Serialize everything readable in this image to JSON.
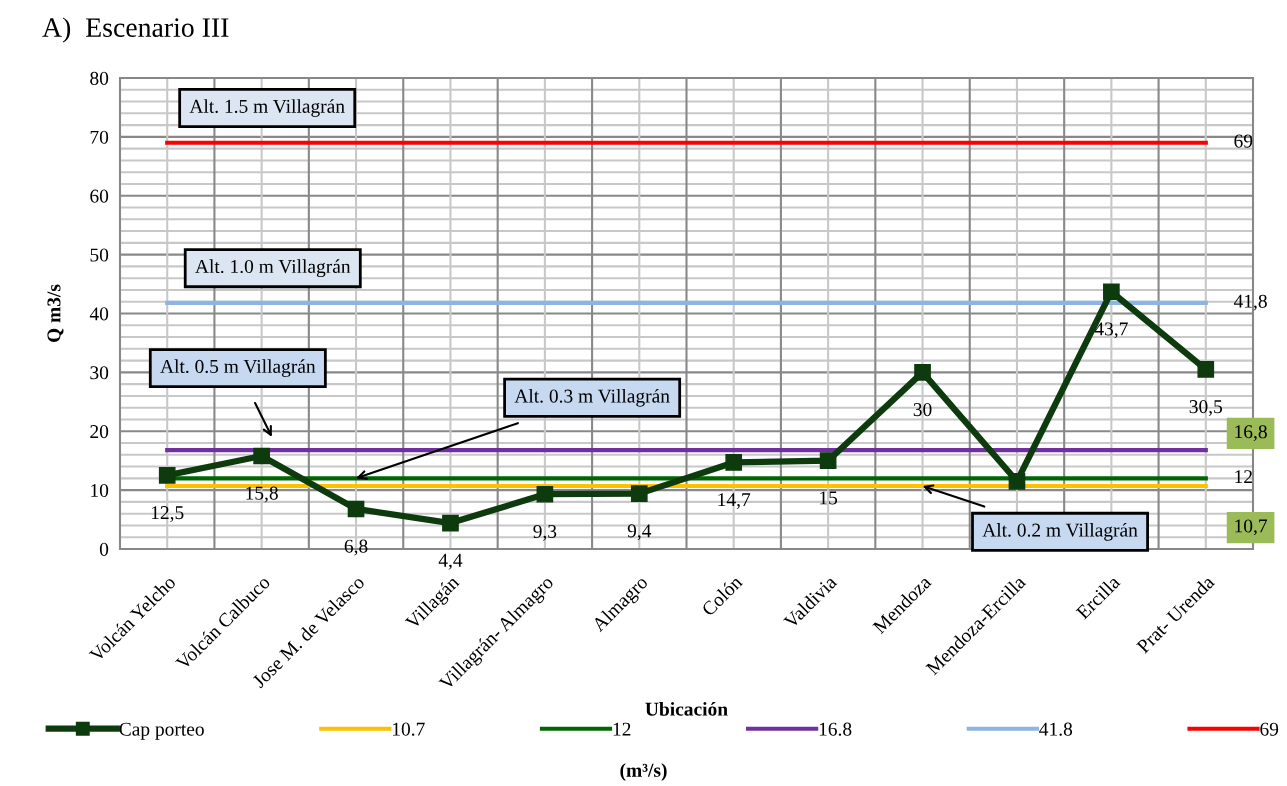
{
  "chart_data": {
    "type": "line",
    "title": "A)  Escenario III",
    "xlabel": "Ubicación",
    "ylabel": "Q m3/s",
    "categories": [
      "Volcán Yelcho",
      "Volcán Calbuco",
      "Jose M. de Velasco",
      "Villagán",
      "Villagrán- Almagro",
      "Almagro",
      "Colón",
      "Valdivia",
      "Mendoza",
      "Mendoza-Ercilla",
      "Ercilla",
      "Prat- Urenda"
    ],
    "series": [
      {
        "name": "Cap porteo",
        "color": "#0d3b0d",
        "marker": "square",
        "values": [
          12.5,
          15.8,
          6.8,
          4.4,
          9.3,
          9.4,
          14.7,
          15,
          30,
          11.5,
          43.7,
          30.5
        ],
        "value_labels": [
          "12,5",
          "15,8",
          "6,8",
          "4,4",
          "9,3",
          "9,4",
          "14,7",
          "15",
          "30",
          null,
          "43,7",
          "30,5"
        ]
      },
      {
        "name": "10.7",
        "color": "#ffc000",
        "values": [
          10.7,
          10.7,
          10.7,
          10.7,
          10.7,
          10.7,
          10.7,
          10.7,
          10.7,
          10.7,
          10.7,
          10.7
        ],
        "value_labels": [
          null,
          null,
          null,
          null,
          null,
          null,
          null,
          null,
          null,
          null,
          null,
          "10,7"
        ]
      },
      {
        "name": "12",
        "color": "#006600",
        "values": [
          12,
          12,
          12,
          12,
          12,
          12,
          12,
          12,
          12,
          12,
          12,
          12
        ],
        "value_labels": [
          null,
          null,
          null,
          null,
          null,
          null,
          null,
          null,
          null,
          null,
          null,
          "12"
        ]
      },
      {
        "name": "16.8",
        "color": "#7030a0",
        "values": [
          16.8,
          16.8,
          16.8,
          16.8,
          16.8,
          16.8,
          16.8,
          16.8,
          16.8,
          16.8,
          16.8,
          16.8
        ],
        "value_labels": [
          null,
          null,
          null,
          null,
          null,
          null,
          null,
          null,
          null,
          null,
          null,
          "16,8"
        ]
      },
      {
        "name": "41.8",
        "color": "#8db4e2",
        "values": [
          41.8,
          41.8,
          41.8,
          41.8,
          41.8,
          41.8,
          41.8,
          41.8,
          41.8,
          41.8,
          41.8,
          41.8
        ],
        "value_labels": [
          null,
          null,
          null,
          null,
          null,
          null,
          null,
          null,
          null,
          null,
          null,
          "41,8"
        ]
      },
      {
        "name": "69",
        "color": "#ff0000",
        "values": [
          69,
          69,
          69,
          69,
          69,
          69,
          69,
          69,
          69,
          69,
          69,
          69
        ],
        "value_labels": [
          null,
          null,
          null,
          null,
          null,
          null,
          null,
          null,
          null,
          null,
          null,
          "69"
        ]
      }
    ],
    "ylim": [
      0,
      80
    ],
    "yticks": [
      0,
      {
        "value": 2,
        "label": null
      },
      {
        "value": 4,
        "label": null
      },
      {
        "value": 6,
        "label": null
      },
      {
        "value": 8,
        "label": null
      },
      10,
      {
        "value": 12,
        "label": null
      },
      {
        "value": 14,
        "label": null
      },
      {
        "value": 16,
        "label": null
      },
      {
        "value": 18,
        "label": null
      },
      20,
      {
        "value": 22,
        "label": null
      },
      {
        "value": 24,
        "label": null
      },
      {
        "value": 26,
        "label": null
      },
      {
        "value": 28,
        "label": null
      },
      30,
      {
        "value": 32,
        "label": null
      },
      {
        "value": 34,
        "label": null
      },
      {
        "value": 36,
        "label": null
      },
      {
        "value": 38,
        "label": null
      },
      40,
      {
        "value": 42,
        "label": null
      },
      {
        "value": 44,
        "label": null
      },
      {
        "value": 46,
        "label": null
      },
      {
        "value": 48,
        "label": null
      },
      50,
      {
        "value": 52,
        "label": null
      },
      {
        "value": 54,
        "label": null
      },
      {
        "value": 56,
        "label": null
      },
      {
        "value": 58,
        "label": null
      },
      60,
      {
        "value": 62,
        "label": null
      },
      {
        "value": 64,
        "label": null
      },
      {
        "value": 66,
        "label": null
      },
      {
        "value": 68,
        "label": null
      },
      70,
      {
        "value": 72,
        "label": null
      },
      {
        "value": 74,
        "label": null
      },
      {
        "value": 76,
        "label": null
      },
      {
        "value": 78,
        "label": null
      },
      80
    ],
    "annotations": [
      {
        "text": "Alt. 1.5 m Villagrán",
        "x": "Volcán Yelcho",
        "y": 69
      },
      {
        "text": "Alt. 1.0 m Villagrán",
        "x": "Volcán Yelcho",
        "y": 41.8
      },
      "Alt. 0.5 m Villagrán",
      {
        "text": "Alt. 0.3 m Villagrán",
        "x": "Jose M. de Velasco",
        "y": 12
      },
      {
        "text": "Alt. 0.2 m Villagrán",
        "x": "Mendoza",
        "y": 10.7
      },
      "(m³/s)"
    ],
    "grid": true,
    "legend": "bottom",
    "line_style": "solid"
  }
}
